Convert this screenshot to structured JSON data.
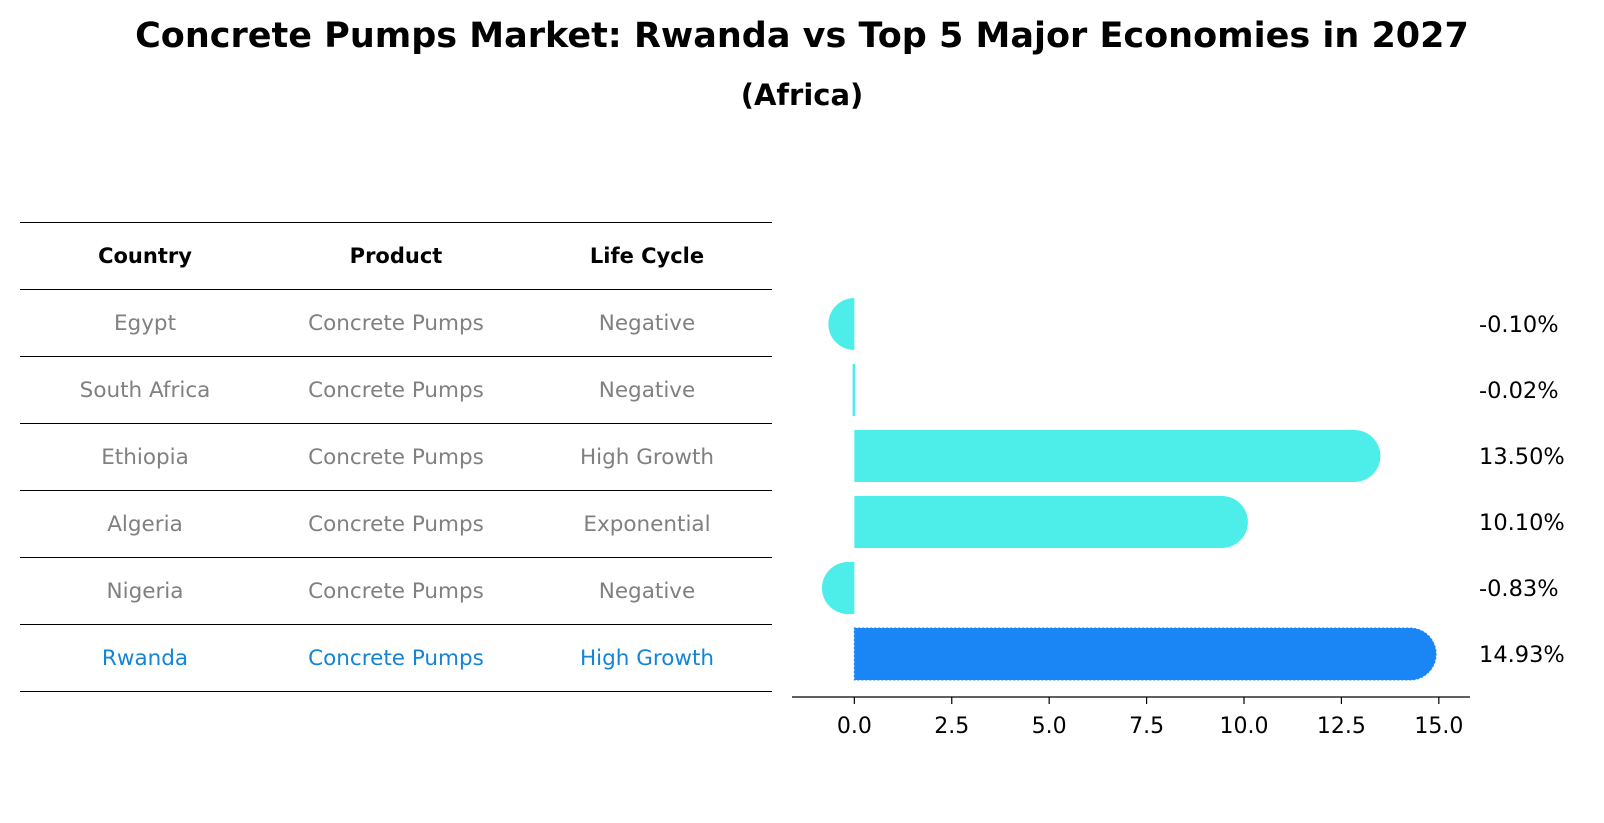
{
  "title": "Concrete Pumps Market: Rwanda vs Top 5 Major Economies in 2027",
  "subtitle": "(Africa)",
  "table": {
    "headers": [
      "Country",
      "Product",
      "Life Cycle"
    ],
    "rows": [
      [
        "Egypt",
        "Concrete Pumps",
        "Negative"
      ],
      [
        "South Africa",
        "Concrete Pumps",
        "Negative"
      ],
      [
        "Ethiopia",
        "Concrete Pumps",
        "High Growth"
      ],
      [
        "Algeria",
        "Concrete Pumps",
        "Exponential"
      ],
      [
        "Nigeria",
        "Concrete Pumps",
        "Negative"
      ],
      [
        "Rwanda",
        "Concrete Pumps",
        "High Growth"
      ]
    ],
    "highlight_row": 5
  },
  "chart_data": {
    "type": "bar",
    "orientation": "horizontal",
    "categories": [
      "Egypt",
      "South Africa",
      "Ethiopia",
      "Algeria",
      "Nigeria",
      "Rwanda"
    ],
    "values": [
      -0.1,
      -0.02,
      13.5,
      10.1,
      -0.83,
      14.93
    ],
    "value_labels": [
      "-0.10%",
      "-0.02%",
      "13.50%",
      "10.10%",
      "-0.83%",
      "14.93%"
    ],
    "xticks": [
      "0.0",
      "2.5",
      "5.0",
      "7.5",
      "10.0",
      "12.5",
      "15.0"
    ],
    "xtick_values": [
      0,
      2.5,
      5,
      7.5,
      10,
      12.5,
      15
    ],
    "xlim": [
      -1.6,
      15.8
    ],
    "colors": {
      "default": "#4deeea",
      "highlight": "#1a85f5"
    },
    "highlight_index": 5
  }
}
